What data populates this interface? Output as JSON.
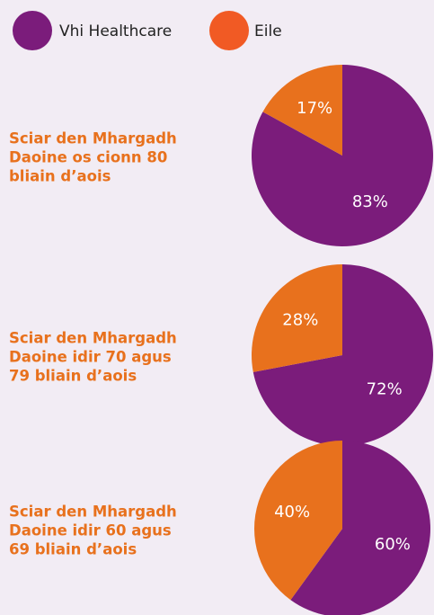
{
  "legend": [
    {
      "name": "Vhi Healthcare",
      "color": "#7b1c7b"
    },
    {
      "name": "Eile",
      "color": "#f15a24"
    }
  ],
  "chart_data": [
    {
      "type": "pie",
      "title": [
        "Sciar den Mhargadh",
        "Daoine os cionn 80",
        "bliain d’aois"
      ],
      "categories": [
        "Vhi Healthcare",
        "Eile"
      ],
      "values": [
        83,
        17
      ],
      "value_labels": [
        "83%",
        "17%"
      ],
      "colors": [
        "#7b1c7b",
        "#e8711d"
      ]
    },
    {
      "type": "pie",
      "title": [
        "Sciar den Mhargadh",
        "Daoine idir 70 agus",
        "79 bliain d’aois"
      ],
      "categories": [
        "Vhi Healthcare",
        "Eile"
      ],
      "values": [
        72,
        28
      ],
      "value_labels": [
        "72%",
        "28%"
      ],
      "colors": [
        "#7b1c7b",
        "#e8711d"
      ]
    },
    {
      "type": "pie",
      "title": [
        "Sciar den Mhargadh",
        "Daoine idir 60 agus",
        "69 bliain d’aois"
      ],
      "categories": [
        "Vhi Healthcare",
        "Eile"
      ],
      "values": [
        60,
        40
      ],
      "value_labels": [
        "60%",
        "40%"
      ],
      "colors": [
        "#7b1c7b",
        "#e8711d"
      ]
    }
  ]
}
